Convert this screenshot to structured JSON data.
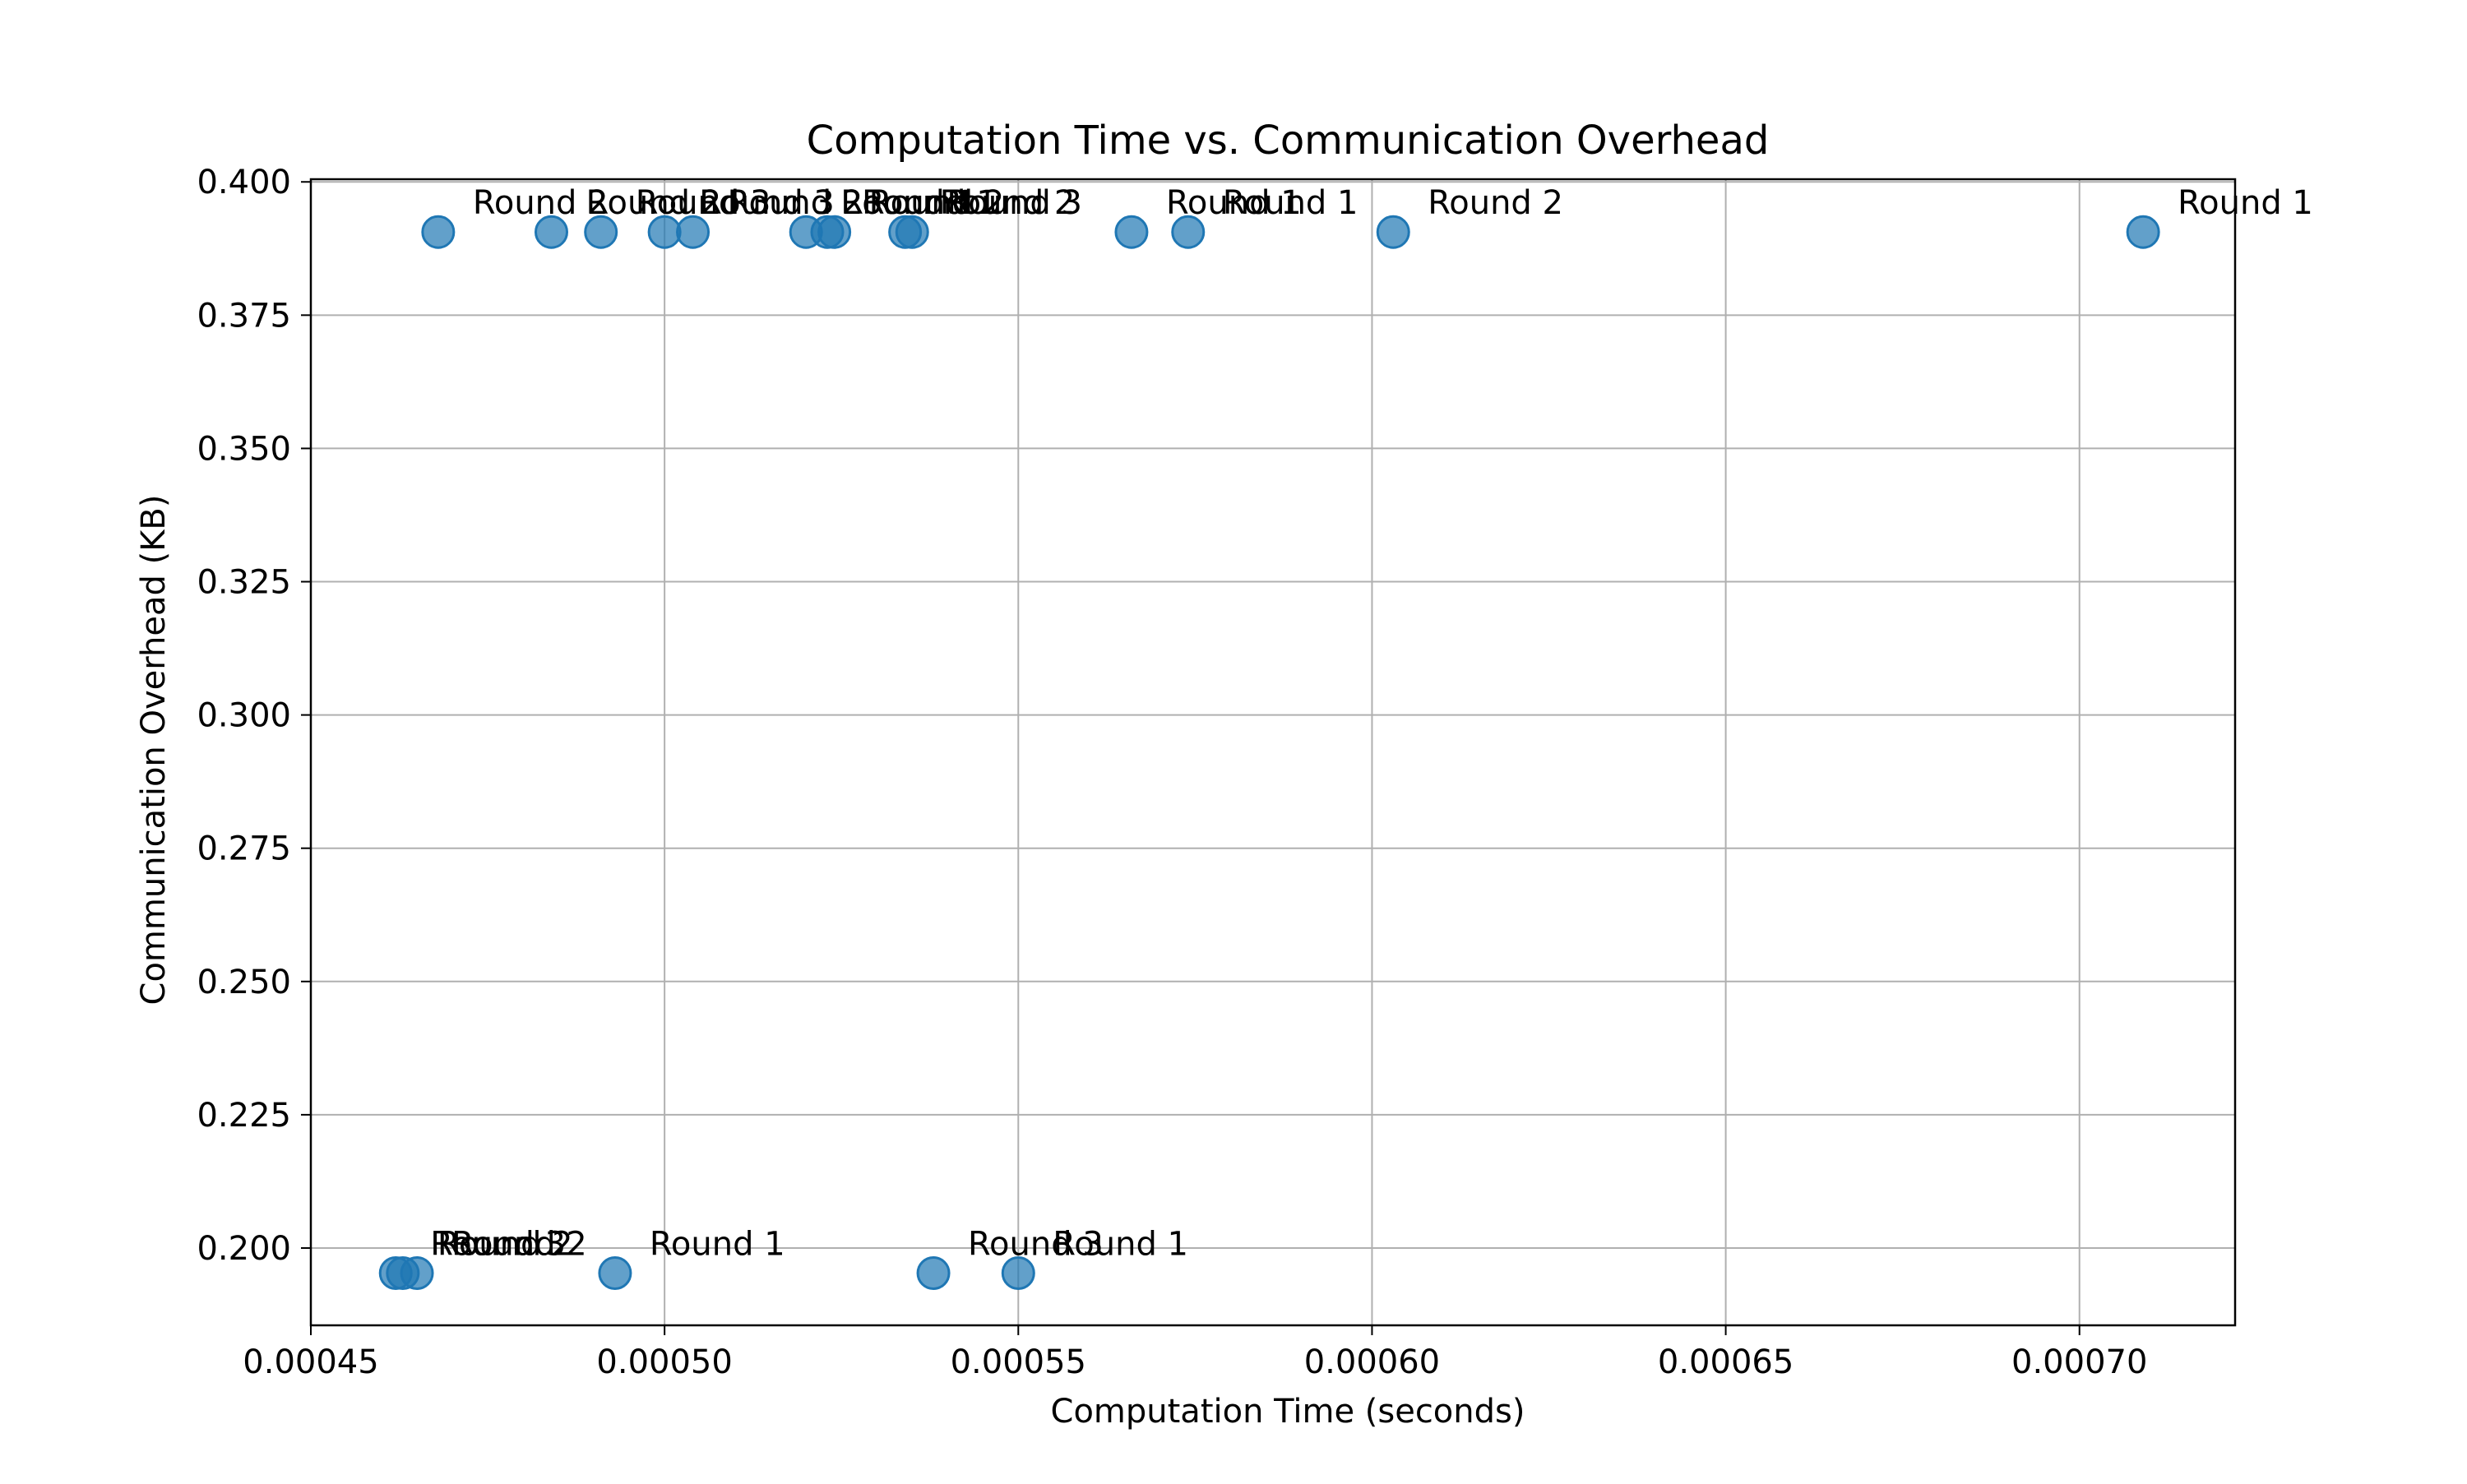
{
  "chart_data": {
    "type": "scatter",
    "title": "Computation Time vs. Communication Overhead",
    "xlabel": "Computation Time (seconds)",
    "ylabel": "Communication Overhead (KB)",
    "xlim": [
      0.00045,
      0.000722
    ],
    "ylim": [
      0.1855,
      0.4005
    ],
    "x_ticks": [
      0.00045,
      0.0005,
      0.00055,
      0.0006,
      0.00065,
      0.0007
    ],
    "x_tick_labels": [
      "0.00045",
      "0.00050",
      "0.00055",
      "0.00060",
      "0.00065",
      "0.00070"
    ],
    "y_ticks": [
      0.2,
      0.225,
      0.25,
      0.275,
      0.3,
      0.325,
      0.35,
      0.375,
      0.4
    ],
    "y_tick_labels": [
      "0.200",
      "0.225",
      "0.250",
      "0.275",
      "0.300",
      "0.325",
      "0.350",
      "0.375",
      "0.400"
    ],
    "grid": true,
    "marker_color": "#1f77b4",
    "points": [
      {
        "x": 0.000468,
        "y": 0.3906,
        "label": "Round 2"
      },
      {
        "x": 0.000484,
        "y": 0.3906,
        "label": "Round 2"
      },
      {
        "x": 0.000491,
        "y": 0.3906,
        "label": "Round 3"
      },
      {
        "x": 0.0005,
        "y": 0.3906,
        "label": "Round 3"
      },
      {
        "x": 0.000504,
        "y": 0.3906,
        "label": "Round 2"
      },
      {
        "x": 0.00052,
        "y": 0.3906,
        "label": "Round 1"
      },
      {
        "x": 0.000523,
        "y": 0.3906,
        "label": "Round 1"
      },
      {
        "x": 0.000524,
        "y": 0.3906,
        "label": "Round 2"
      },
      {
        "x": 0.000534,
        "y": 0.3906,
        "label": "Round 2"
      },
      {
        "x": 0.000535,
        "y": 0.3906,
        "label": "Round 3"
      },
      {
        "x": 0.000566,
        "y": 0.3906,
        "label": "Round 1"
      },
      {
        "x": 0.000574,
        "y": 0.3906,
        "label": "Round 1"
      },
      {
        "x": 0.000603,
        "y": 0.3906,
        "label": "Round 2"
      },
      {
        "x": 0.000709,
        "y": 0.3906,
        "label": "Round 1"
      },
      {
        "x": 0.000462,
        "y": 0.1953,
        "label": "Round 3"
      },
      {
        "x": 0.000463,
        "y": 0.1953,
        "label": "Round 2"
      },
      {
        "x": 0.000465,
        "y": 0.1953,
        "label": "Round 2"
      },
      {
        "x": 0.000493,
        "y": 0.1953,
        "label": "Round 1"
      },
      {
        "x": 0.000538,
        "y": 0.1953,
        "label": "Round 3"
      },
      {
        "x": 0.00055,
        "y": 0.1953,
        "label": "Round 1"
      }
    ]
  }
}
